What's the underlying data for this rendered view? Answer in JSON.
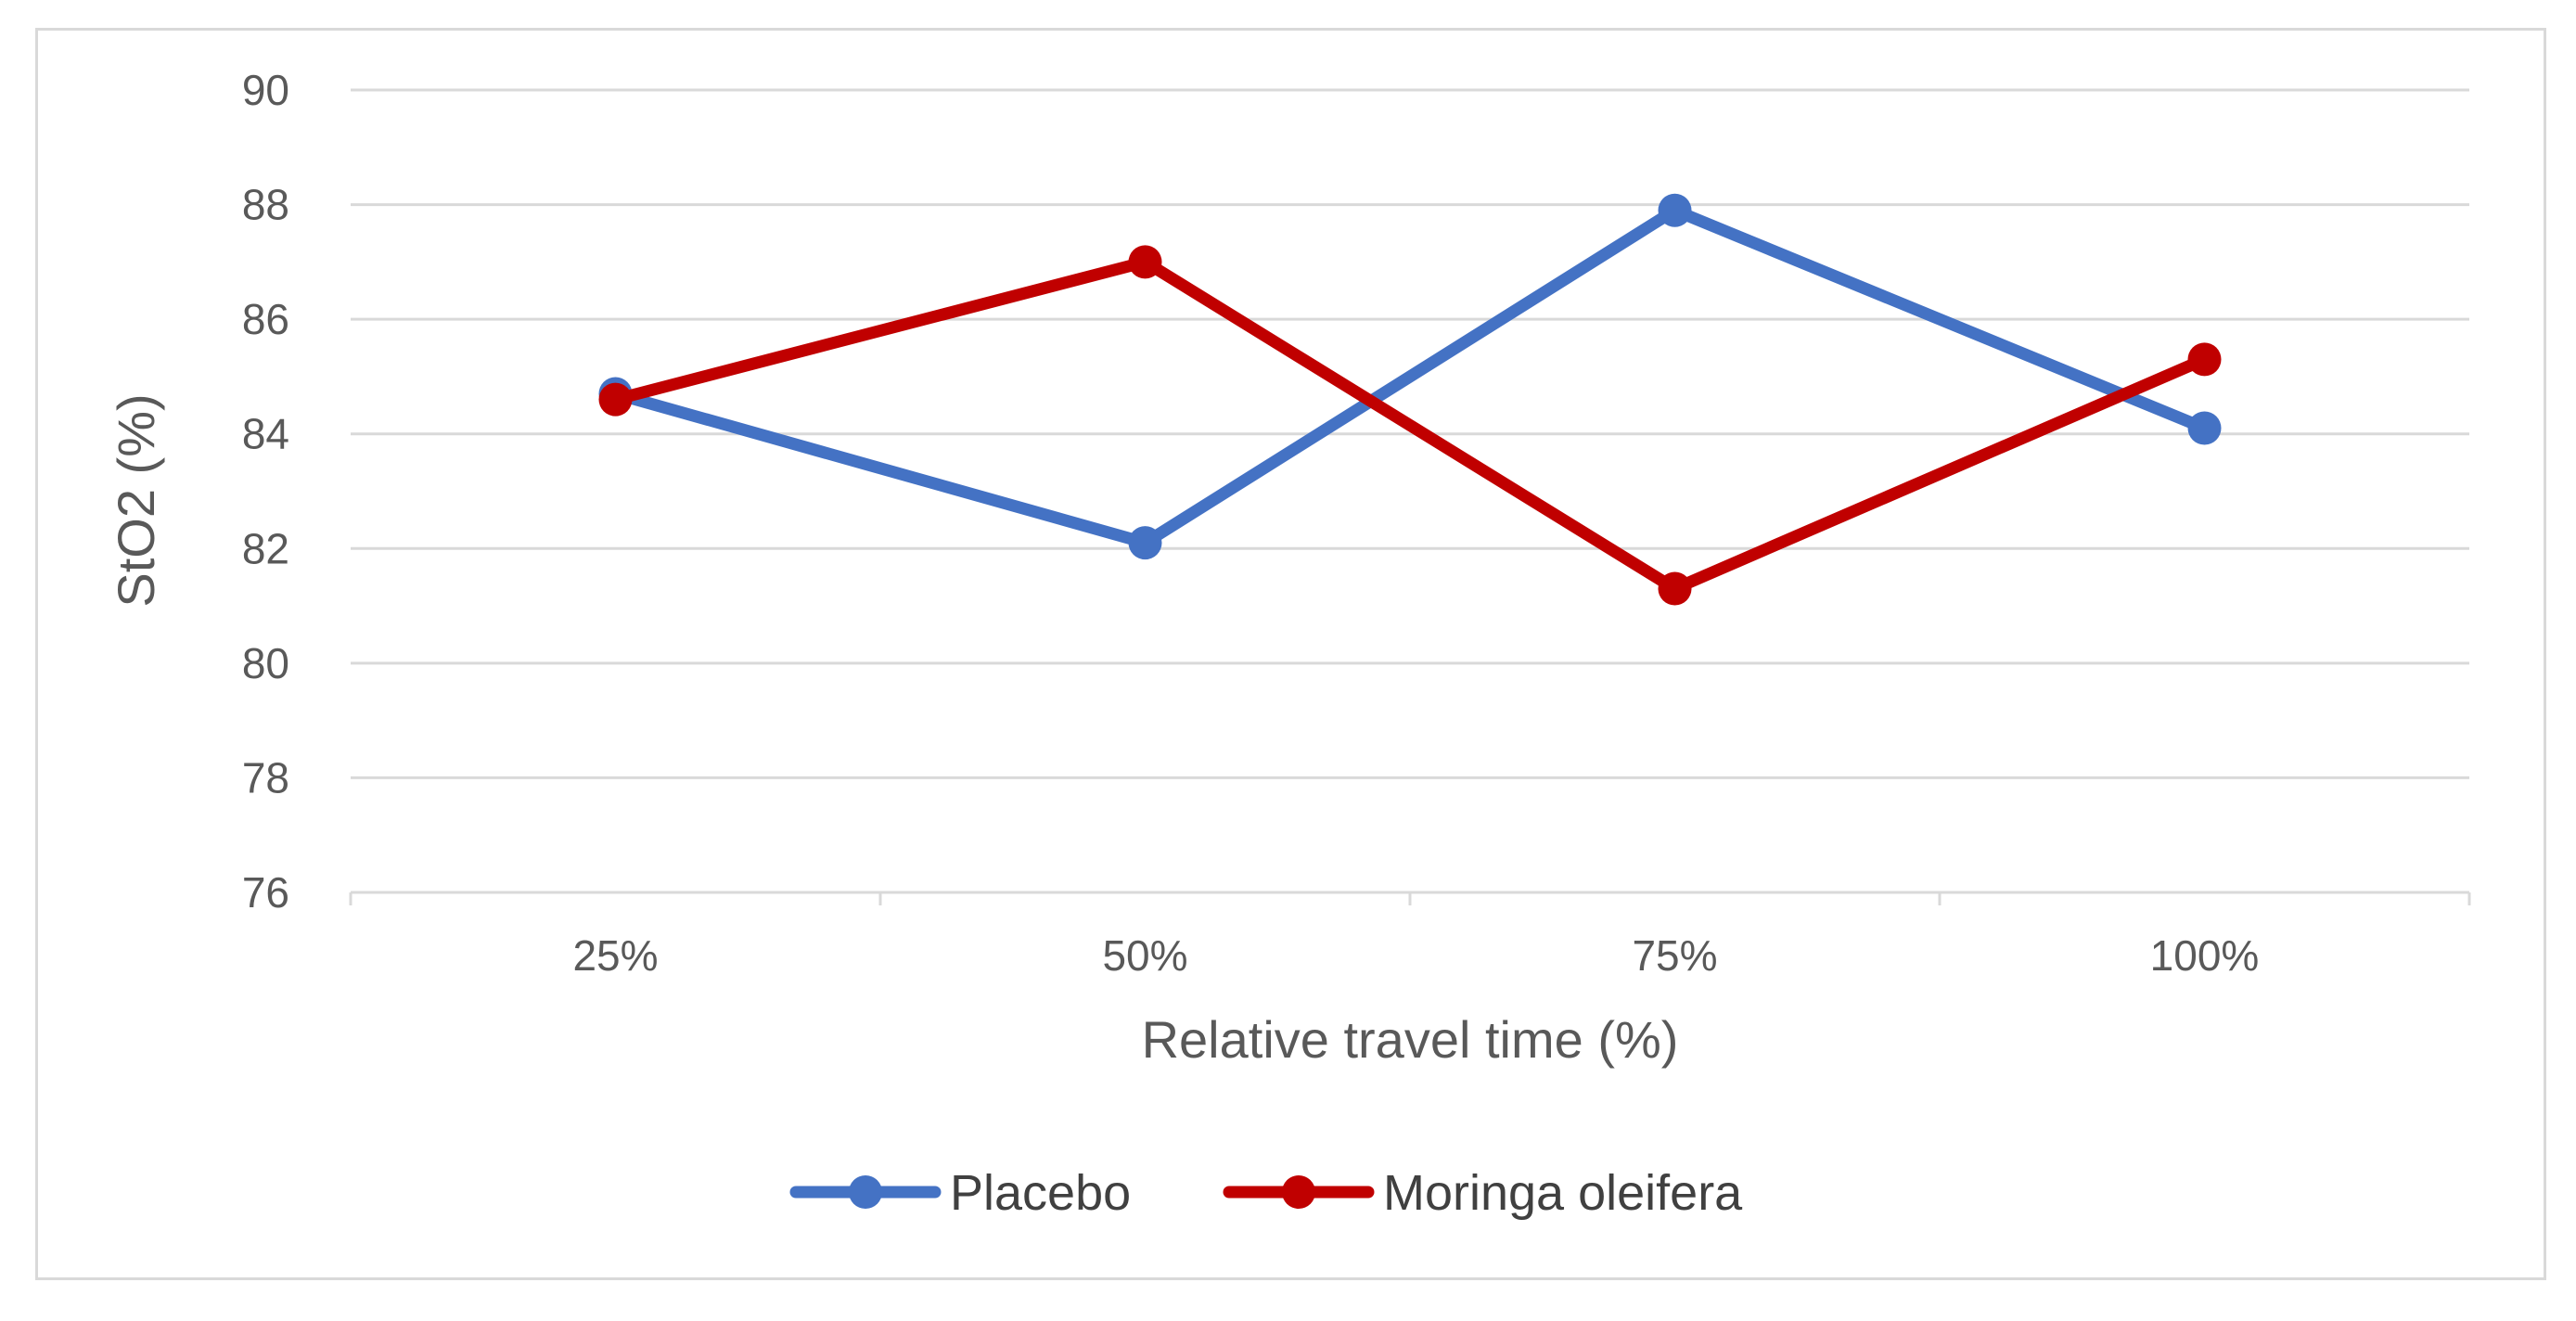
{
  "chart_data": {
    "type": "line",
    "title": "",
    "xlabel": "Relative travel time (%)",
    "ylabel": "StO2 (%)",
    "categories": [
      "25%",
      "50%",
      "75%",
      "100%"
    ],
    "ylim": [
      76,
      90
    ],
    "yticks": [
      76,
      78,
      80,
      82,
      84,
      86,
      88,
      90
    ],
    "ytick_labels": [
      "76",
      "78",
      "80",
      "82",
      "84",
      "86",
      "88",
      "90"
    ],
    "grid": true,
    "legend_position": "bottom",
    "series": [
      {
        "name": "Placebo",
        "color": "#4472c4",
        "values": [
          84.7,
          82.1,
          87.9,
          84.1
        ]
      },
      {
        "name": "Moringa oleifera",
        "color": "#c00000",
        "values": [
          84.6,
          87.0,
          81.3,
          85.3
        ]
      }
    ]
  }
}
